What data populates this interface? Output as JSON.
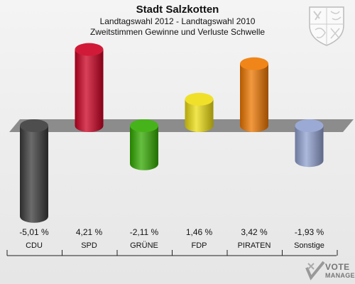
{
  "header": {
    "title": "Stadt Salzkotten",
    "subtitle1": "Landtagswahl 2012 - Landtagswahl 2010",
    "subtitle2": "Zweitstimmen Gewinne und Verluste Schwelle"
  },
  "brand": {
    "line1": "VOTE",
    "line2": "MANAGER"
  },
  "chart_data": {
    "type": "bar",
    "title": "Stadt Salzkotten",
    "subtitle": "Landtagswahl 2012 - Landtagswahl 2010 · Zweitstimmen Gewinne und Verluste Schwelle",
    "categories": [
      "CDU",
      "SPD",
      "GRÜNE",
      "FDP",
      "PIRATEN",
      "Sonstige"
    ],
    "values": [
      -5.01,
      4.21,
      -2.11,
      1.46,
      3.42,
      -1.93
    ],
    "value_labels": [
      "-5,01 %",
      "4,21 %",
      "-2,11 %",
      "1,46 %",
      "3,42 %",
      "-1,93 %"
    ],
    "colors": [
      "#3a3a3a",
      "#cc0022",
      "#33aa00",
      "#eedd11",
      "#ee7700",
      "#90a0d0"
    ],
    "unit": "%",
    "ylim": [
      -5.5,
      5.5
    ],
    "grid": false,
    "legend": "none"
  }
}
